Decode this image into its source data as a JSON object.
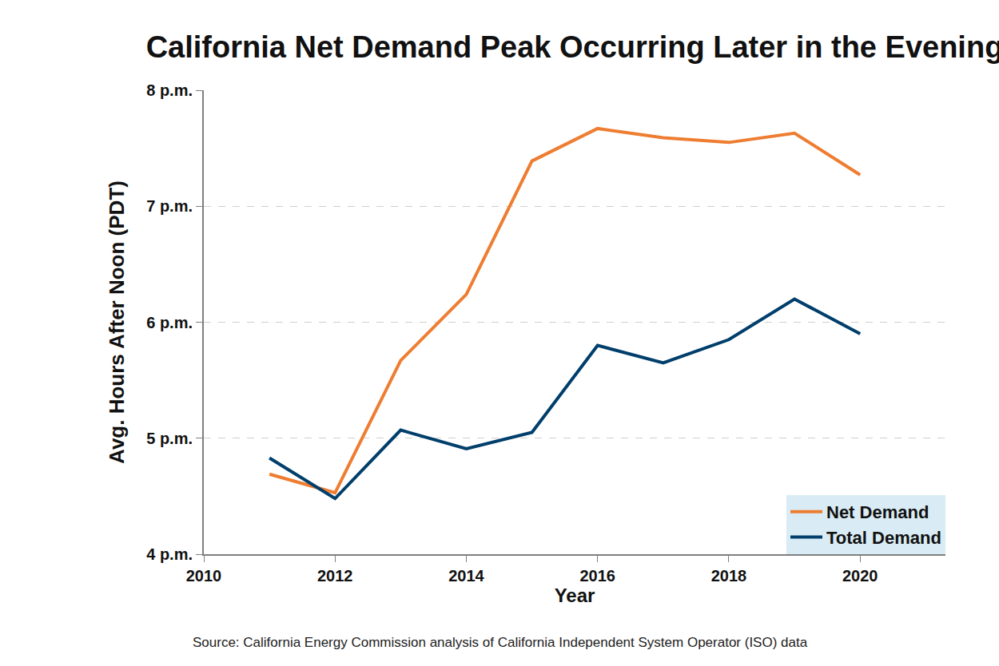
{
  "chart_data": {
    "type": "line",
    "title": "California Net Demand Peak Occurring Later in the Evening",
    "x_label": "Year",
    "y_label": "Avg. Hours After Noon (PDT)",
    "source": "Source: California Energy Commission analysis of California Independent System Operator (ISO) data",
    "x": [
      2011,
      2012,
      2013,
      2014,
      2015,
      2016,
      2017,
      2018,
      2019,
      2020
    ],
    "series": [
      {
        "name": "Net Demand",
        "color": "#ee7d31",
        "values": [
          4.69,
          4.53,
          5.67,
          6.24,
          7.39,
          7.67,
          7.59,
          7.55,
          7.63,
          7.27
        ]
      },
      {
        "name": "Total Demand",
        "color": "#003e6b",
        "values": [
          4.83,
          4.48,
          5.07,
          4.91,
          5.05,
          5.8,
          5.65,
          5.85,
          6.2,
          5.9
        ]
      }
    ],
    "xlim": [
      2010,
      2021.3
    ],
    "xticks": [
      2010,
      2012,
      2014,
      2016,
      2018,
      2020
    ],
    "ylim": [
      4,
      8
    ],
    "yticks": [
      {
        "value": 4,
        "label": "4 p.m."
      },
      {
        "value": 5,
        "label": "5 p.m."
      },
      {
        "value": 6,
        "label": "6 p.m."
      },
      {
        "value": 7,
        "label": "7 p.m."
      },
      {
        "value": 8,
        "label": "8 p.m."
      }
    ],
    "grid": true,
    "legend": "bottom right"
  }
}
